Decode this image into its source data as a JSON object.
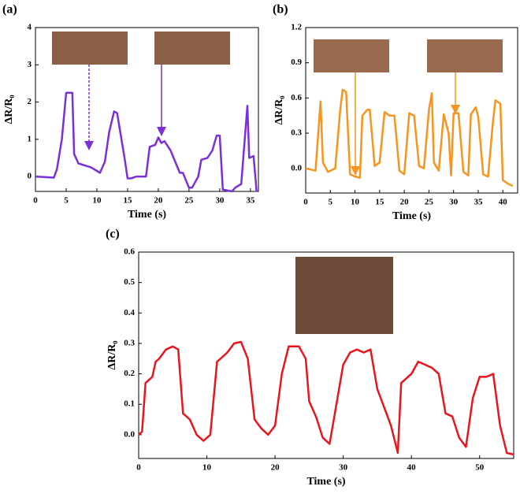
{
  "chart_data": [
    {
      "type": "line",
      "panel_label": "(a)",
      "x_label": "Time (s)",
      "y_label": "ΔR/R₀",
      "xlim": [
        0,
        36.3
      ],
      "ylim": [
        -0.4,
        4
      ],
      "xticks": [
        0,
        5,
        10,
        15,
        20,
        25,
        30,
        35
      ],
      "yticks": [
        0,
        1,
        2,
        3,
        4
      ],
      "x": [
        0,
        3,
        3.5,
        4.3,
        5,
        6,
        6.3,
        7,
        8,
        9,
        10,
        10.5,
        11.3,
        12,
        12.8,
        13.3,
        14.3,
        14.6,
        15,
        15.5,
        16.5,
        18,
        18.6,
        19.5,
        20,
        20.5,
        21,
        22,
        22.5,
        23.5,
        24,
        25,
        25.5,
        26.5,
        27,
        28,
        28.8,
        29.5,
        30,
        30.5,
        32,
        32.5,
        33.5,
        34.5,
        34.8,
        35.5,
        36
      ],
      "series": [
        {
          "color": "#7b2fd6",
          "values": [
            0,
            -0.03,
            0.2,
            1.0,
            2.25,
            2.25,
            0.6,
            0.35,
            0.3,
            0.25,
            0.15,
            0.1,
            0.4,
            1.2,
            1.75,
            1.7,
            0.7,
            0.4,
            -0.05,
            -0.05,
            0,
            0,
            0.8,
            0.85,
            1.05,
            0.9,
            0.95,
            0.7,
            0.5,
            0.1,
            0.1,
            -0.3,
            -0.3,
            0,
            0.45,
            0.5,
            0.7,
            1.1,
            1.1,
            -0.35,
            -0.4,
            -0.3,
            -0.2,
            1.9,
            0.5,
            0.55,
            -0.4
          ]
        }
      ]
    },
    {
      "type": "line",
      "panel_label": "(b)",
      "x_label": "Time (s)",
      "y_label": "ΔR/R₀",
      "xlim": [
        0,
        43
      ],
      "ylim": [
        -0.21,
        1.2
      ],
      "xticks": [
        0,
        5,
        10,
        15,
        20,
        25,
        30,
        35,
        40
      ],
      "yticks": [
        {
          "value": 0,
          "label": "0.0"
        },
        0.3,
        0.6,
        0.9,
        1.2
      ],
      "x": [
        0,
        2,
        3,
        3.5,
        4.5,
        6,
        7,
        7.5,
        8.2,
        9,
        10,
        11,
        11.5,
        12.5,
        13,
        14,
        15,
        16,
        17,
        18,
        19,
        20,
        21,
        22,
        23,
        24,
        25,
        25.6,
        26,
        27,
        28,
        29,
        29.5,
        30,
        31,
        32,
        33,
        33.5,
        34.5,
        35,
        36,
        37,
        38,
        38.5,
        39.5,
        40,
        41,
        42
      ],
      "series": [
        {
          "color": "#f7941d",
          "values": [
            0,
            -0.02,
            0.57,
            0.05,
            -0.03,
            0,
            0.5,
            0.67,
            0.65,
            -0.05,
            -0.07,
            -0.08,
            0.45,
            0.5,
            0.5,
            0.02,
            0.05,
            0.48,
            0.45,
            0.45,
            -0.02,
            -0.05,
            0.47,
            0.45,
            0.02,
            0,
            0.5,
            0.64,
            0.05,
            -0.02,
            0.46,
            0.3,
            -0.06,
            0.47,
            0.47,
            -0.03,
            -0.06,
            0.46,
            0.52,
            0.44,
            -0.05,
            -0.07,
            0.4,
            0.58,
            0.55,
            -0.1,
            -0.13,
            -0.15
          ]
        }
      ]
    },
    {
      "type": "line",
      "panel_label": "(c)",
      "x_label": "Time (s)",
      "y_label": "ΔR/R₀",
      "xlim": [
        0,
        55
      ],
      "ylim": [
        -0.078,
        0.6
      ],
      "xticks": [
        0,
        10,
        20,
        30,
        40,
        50
      ],
      "yticks": [
        {
          "value": 0,
          "label": "0.0"
        },
        0.1,
        0.2,
        0.3,
        0.4,
        0.5,
        0.6
      ],
      "x": [
        0,
        0.5,
        1,
        1.5,
        2,
        2.5,
        3,
        4,
        5,
        5.8,
        6.5,
        7.5,
        8.5,
        9.5,
        10.5,
        11.5,
        12,
        13,
        14,
        15,
        16,
        17,
        18,
        19,
        20,
        21,
        22,
        23.5,
        24.5,
        25,
        26,
        27,
        28,
        29,
        30,
        31,
        32,
        33,
        34,
        35,
        36,
        37,
        38,
        38.5,
        40,
        41,
        42,
        43,
        44,
        45,
        46,
        47,
        48,
        49,
        50,
        51,
        52,
        53,
        54,
        55
      ],
      "series": [
        {
          "color": "#e8161c",
          "values": [
            0,
            0.01,
            0.17,
            0.18,
            0.19,
            0.24,
            0.25,
            0.28,
            0.29,
            0.28,
            0.07,
            0.05,
            0,
            -0.02,
            0,
            0.24,
            0.25,
            0.27,
            0.3,
            0.305,
            0.25,
            0.05,
            0.02,
            0,
            0.03,
            0.2,
            0.29,
            0.29,
            0.25,
            0.11,
            0.06,
            -0.01,
            -0.03,
            0.1,
            0.23,
            0.27,
            0.28,
            0.27,
            0.28,
            0.15,
            0.09,
            0.03,
            -0.06,
            0.17,
            0.2,
            0.24,
            0.23,
            0.22,
            0.2,
            0.07,
            0.06,
            -0.01,
            -0.04,
            0.12,
            0.19,
            0.19,
            0.2,
            0.03,
            -0.06,
            -0.065
          ]
        }
      ]
    }
  ]
}
